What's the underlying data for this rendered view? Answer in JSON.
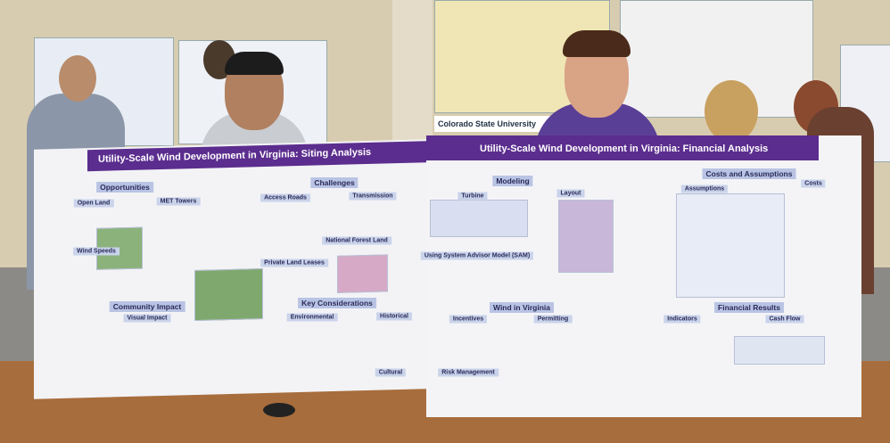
{
  "left_poster": {
    "title": "Utility-Scale Wind Development in Virginia: Siting Analysis",
    "headings": [
      "Opportunities",
      "Challenges",
      "Open Land",
      "MET Towers",
      "Access Roads",
      "Transmission",
      "Wind Speeds",
      "National Forest Land",
      "Private Land Leases",
      "Community Impact",
      "Key Considerations",
      "Visual Impact",
      "Environmental",
      "Historical",
      "Cultural"
    ]
  },
  "right_poster": {
    "title": "Utility-Scale Wind Development in Virginia: Financial Analysis",
    "headings": [
      "Modeling",
      "Turbine",
      "Layout",
      "Using System Advisor Model (SAM)",
      "Costs and Assumptions",
      "Assumptions",
      "Costs",
      "Wind in Virginia",
      "Incentives",
      "Permitting",
      "Risk Management",
      "Financial Results",
      "Indicators",
      "Cash Flow"
    ]
  },
  "background": {
    "banner": "Colorado State University"
  }
}
